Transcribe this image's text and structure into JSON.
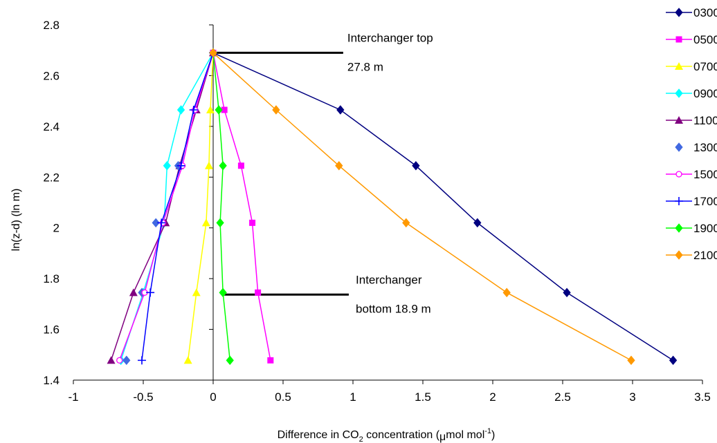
{
  "chart_data": {
    "type": "line",
    "xlabel": "Difference in CO2 concentration (μmol mol-1)",
    "xlabel_parts": {
      "before": "Difference in CO",
      "sub": "2",
      "middle": " concentration (",
      "mu": "μ",
      "after": "mol mol",
      "sup": "-1",
      "close": ")"
    },
    "ylabel": "ln(z-d)  (ln m)",
    "xlim": [
      -1,
      3.5
    ],
    "ylim": [
      1.4,
      2.8
    ],
    "xticks": [
      "-1",
      "-0.5",
      "0",
      "0.5",
      "1",
      "1.5",
      "2",
      "2.5",
      "3",
      "3.5"
    ],
    "yticks": [
      "1.4",
      "1.6",
      "1.8",
      "2",
      "2.2",
      "2.4",
      "2.6",
      "2.8"
    ],
    "grid": false,
    "legend_position": "right",
    "y_levels": [
      2.69,
      2.465,
      2.245,
      2.02,
      1.745,
      1.478
    ],
    "series": [
      {
        "name": "0300",
        "color": "#000080",
        "marker": "diamond",
        "line": true,
        "x": [
          0,
          0.91,
          1.45,
          1.89,
          2.53,
          3.29
        ]
      },
      {
        "name": "0500",
        "color": "#ff00ff",
        "marker": "square",
        "line": true,
        "x": [
          0,
          0.08,
          0.2,
          0.28,
          0.32,
          0.41
        ]
      },
      {
        "name": "0700",
        "color": "#ffff00",
        "marker": "triangle",
        "line": true,
        "x": [
          0,
          -0.02,
          -0.03,
          -0.05,
          -0.12,
          -0.18
        ]
      },
      {
        "name": "0900",
        "color": "#00ffff",
        "marker": "diamond",
        "line": true,
        "x": [
          0,
          -0.23,
          -0.33,
          -0.35,
          -0.5,
          -0.66
        ]
      },
      {
        "name": "1100",
        "color": "#800080",
        "marker": "triangle",
        "line": true,
        "x": [
          0,
          -0.12,
          -0.24,
          -0.34,
          -0.57,
          -0.73
        ]
      },
      {
        "name": "1300",
        "color": "#4169e1",
        "marker": "diamond",
        "line": false,
        "x": [
          0,
          -0.13,
          -0.25,
          -0.41,
          -0.51,
          -0.62
        ]
      },
      {
        "name": "1500",
        "color": "#ff00ff",
        "marker": "circle",
        "line": true,
        "x": [
          0,
          -0.13,
          -0.22,
          -0.36,
          -0.49,
          -0.67
        ]
      },
      {
        "name": "1700",
        "color": "#0000ff",
        "marker": "plus",
        "line": true,
        "x": [
          0,
          -0.14,
          -0.23,
          -0.37,
          -0.45,
          -0.51
        ]
      },
      {
        "name": "1900",
        "color": "#00ff00",
        "marker": "diamond",
        "line": true,
        "x": [
          0,
          0.04,
          0.07,
          0.05,
          0.07,
          0.12
        ]
      },
      {
        "name": "2100",
        "color": "#ff9900",
        "marker": "diamond",
        "line": true,
        "x": [
          0,
          0.45,
          0.9,
          1.38,
          2.1,
          2.99
        ]
      }
    ],
    "annotations": [
      {
        "lines": [
          "Interchanger top",
          "27.8 m"
        ],
        "y": 2.69,
        "line_x": [
          0,
          0.93
        ],
        "text_x": 0.96
      },
      {
        "lines": [
          "Interchanger",
          "bottom  18.9 m"
        ],
        "y": 1.737,
        "line_x": [
          0.07,
          0.97
        ],
        "text_x": 1.02
      }
    ]
  }
}
